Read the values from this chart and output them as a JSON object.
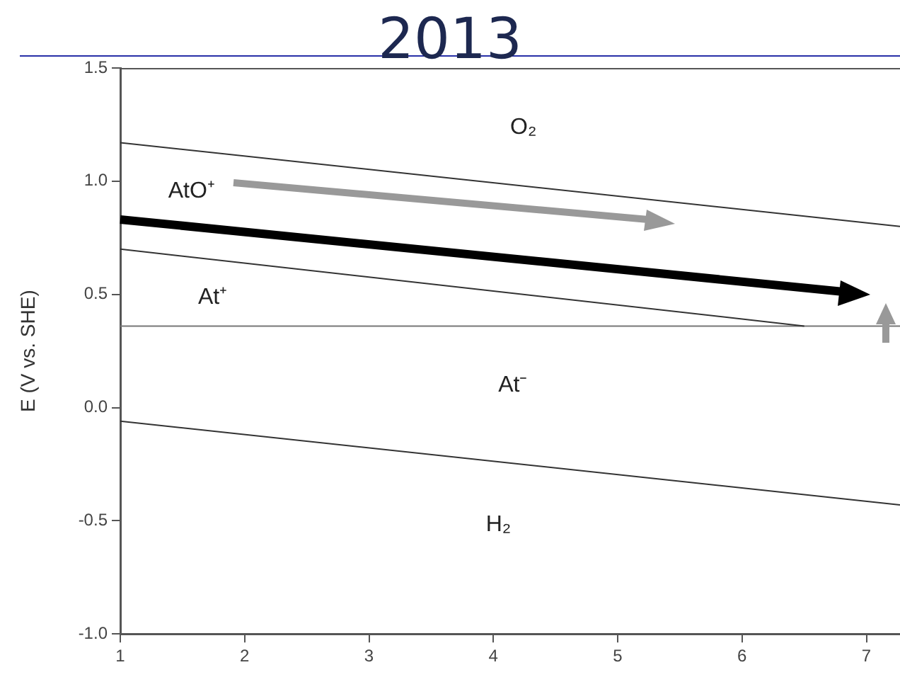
{
  "chart_data": {
    "type": "line",
    "title": "2013",
    "ylabel": "E (V vs. SHE)",
    "series": [
      {
        "color": "#333333",
        "x": [
          1,
          7.27
        ],
        "values": [
          1.17,
          0.8
        ]
      },
      {
        "color": "#333333",
        "x": [
          1,
          6.5
        ],
        "values": [
          0.7,
          0.36
        ]
      },
      {
        "color": "#777777",
        "x": [
          1,
          7.27
        ],
        "values": [
          0.36,
          0.36
        ]
      },
      {
        "color": "#333333",
        "x": [
          1,
          7.27
        ],
        "values": [
          -0.06,
          -0.43
        ]
      }
    ],
    "xlim": [
      1,
      7.27
    ],
    "xticks": [
      1,
      2,
      3,
      4,
      5,
      6,
      7
    ],
    "ylim": [
      -1,
      1.5
    ],
    "yticks": [
      {
        "value": -1,
        "label": "-1.0"
      },
      {
        "value": -0.5,
        "label": "-0.5"
      },
      {
        "value": 0,
        "label": "0.0"
      },
      {
        "value": 0.5,
        "label": "0.5"
      },
      {
        "value": 1,
        "label": "1.0"
      },
      {
        "value": 1.5,
        "label": "1.5"
      }
    ],
    "annotations": [
      "O₂",
      "AtO⁺",
      "At⁺",
      "At⁻",
      "H₂"
    ],
    "grid": false,
    "legend": false,
    "marker": "none",
    "line_style": "solid"
  }
}
